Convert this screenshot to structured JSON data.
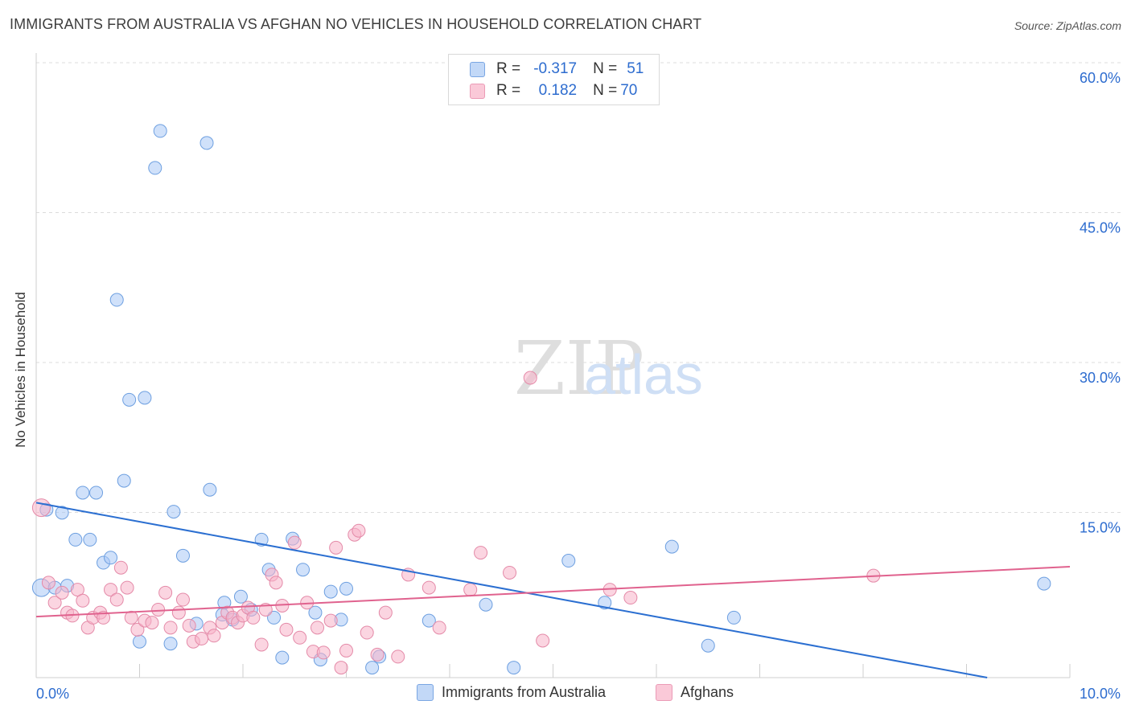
{
  "title": "IMMIGRANTS FROM AUSTRALIA VS AFGHAN NO VEHICLES IN HOUSEHOLD CORRELATION CHART",
  "source": "Source: ZipAtlas.com",
  "watermark": {
    "zip": "ZIP",
    "atlas": "atlas"
  },
  "legend": {
    "rows": [
      {
        "r_label": "R =",
        "r_value": "-0.317",
        "n_label": "N =",
        "n_value": "51",
        "color": "#a9c8f5"
      },
      {
        "r_label": "R =",
        "r_value": "0.182",
        "n_label": "N =",
        "n_value": "70",
        "color": "#f7b3c8"
      }
    ]
  },
  "bottom_legend": {
    "items": [
      {
        "label": "Immigrants from Australia",
        "color": "#a9c8f5"
      },
      {
        "label": "Afghans",
        "color": "#f7b3c8"
      }
    ]
  },
  "chart_data": {
    "type": "scatter",
    "title": "IMMIGRANTS FROM AUSTRALIA VS AFGHAN NO VEHICLES IN HOUSEHOLD CORRELATION CHART",
    "xlabel": "",
    "ylabel": "No Vehicles in Household",
    "xlim": [
      0,
      10
    ],
    "ylim": [
      0,
      60
    ],
    "x_tick_labels": [
      "0.0%",
      "10.0%"
    ],
    "y_ticks": [
      15,
      30,
      45,
      60
    ],
    "y_tick_labels": [
      "15.0%",
      "30.0%",
      "45.0%",
      "60.0%"
    ],
    "grid": "horizontal dashed",
    "legend_placement": "top-center",
    "series": [
      {
        "name": "Immigrants from Australia",
        "color": "#a9c8f5",
        "stroke": "#6d9fe0",
        "line_color": "#2b6fd1",
        "trend": {
          "x0": 0.0,
          "y0": 17.5,
          "x1": 9.2,
          "y1": 0.0
        },
        "points": [
          [
            0.05,
            9.0
          ],
          [
            0.1,
            16.8
          ],
          [
            0.18,
            9.0
          ],
          [
            0.25,
            16.5
          ],
          [
            0.3,
            9.2
          ],
          [
            0.38,
            13.8
          ],
          [
            0.45,
            18.5
          ],
          [
            0.52,
            13.8
          ],
          [
            0.58,
            18.5
          ],
          [
            0.65,
            11.5
          ],
          [
            0.72,
            12.0
          ],
          [
            0.78,
            37.8
          ],
          [
            0.85,
            19.7
          ],
          [
            0.9,
            27.8
          ],
          [
            1.0,
            3.6
          ],
          [
            1.05,
            28.0
          ],
          [
            1.15,
            51.0
          ],
          [
            1.2,
            54.7
          ],
          [
            1.3,
            3.4
          ],
          [
            1.33,
            16.6
          ],
          [
            1.42,
            12.2
          ],
          [
            1.55,
            5.4
          ],
          [
            1.65,
            53.5
          ],
          [
            1.68,
            18.8
          ],
          [
            1.8,
            6.3
          ],
          [
            1.82,
            7.5
          ],
          [
            1.9,
            5.8
          ],
          [
            1.98,
            8.1
          ],
          [
            2.08,
            6.8
          ],
          [
            2.18,
            13.8
          ],
          [
            2.25,
            10.8
          ],
          [
            2.3,
            6.0
          ],
          [
            2.38,
            2.0
          ],
          [
            2.48,
            13.9
          ],
          [
            2.58,
            10.8
          ],
          [
            2.7,
            6.5
          ],
          [
            2.75,
            1.8
          ],
          [
            2.85,
            8.6
          ],
          [
            2.95,
            5.8
          ],
          [
            3.0,
            8.9
          ],
          [
            3.25,
            1.0
          ],
          [
            3.32,
            2.1
          ],
          [
            3.8,
            5.7
          ],
          [
            4.35,
            7.3
          ],
          [
            4.62,
            1.0
          ],
          [
            5.15,
            11.7
          ],
          [
            5.5,
            7.5
          ],
          [
            6.15,
            13.1
          ],
          [
            6.5,
            3.2
          ],
          [
            6.75,
            6.0
          ],
          [
            9.75,
            9.4
          ]
        ]
      },
      {
        "name": "Afghans",
        "color": "#f7b3c8",
        "stroke": "#e48aa8",
        "line_color": "#e0628e",
        "trend": {
          "x0": 0.0,
          "y0": 6.1,
          "x1": 10.0,
          "y1": 11.1
        },
        "points": [
          [
            0.05,
            17.0
          ],
          [
            0.12,
            9.5
          ],
          [
            0.18,
            7.5
          ],
          [
            0.25,
            8.5
          ],
          [
            0.3,
            6.5
          ],
          [
            0.35,
            6.2
          ],
          [
            0.4,
            8.8
          ],
          [
            0.45,
            7.7
          ],
          [
            0.5,
            5.0
          ],
          [
            0.55,
            6.0
          ],
          [
            0.62,
            6.5
          ],
          [
            0.65,
            6.0
          ],
          [
            0.72,
            8.8
          ],
          [
            0.78,
            7.8
          ],
          [
            0.82,
            11.0
          ],
          [
            0.88,
            9.0
          ],
          [
            0.92,
            6.0
          ],
          [
            0.98,
            4.8
          ],
          [
            1.05,
            5.7
          ],
          [
            1.12,
            5.5
          ],
          [
            1.18,
            6.8
          ],
          [
            1.25,
            8.5
          ],
          [
            1.3,
            5.0
          ],
          [
            1.38,
            6.5
          ],
          [
            1.42,
            7.8
          ],
          [
            1.48,
            5.2
          ],
          [
            1.52,
            3.6
          ],
          [
            1.6,
            3.9
          ],
          [
            1.68,
            5.0
          ],
          [
            1.72,
            4.2
          ],
          [
            1.8,
            5.5
          ],
          [
            1.85,
            6.5
          ],
          [
            1.9,
            6.0
          ],
          [
            1.95,
            5.5
          ],
          [
            2.0,
            6.2
          ],
          [
            2.05,
            7.0
          ],
          [
            2.1,
            6.0
          ],
          [
            2.18,
            3.3
          ],
          [
            2.22,
            6.8
          ],
          [
            2.28,
            10.3
          ],
          [
            2.32,
            9.5
          ],
          [
            2.38,
            7.2
          ],
          [
            2.42,
            4.8
          ],
          [
            2.5,
            13.5
          ],
          [
            2.55,
            4.0
          ],
          [
            2.62,
            7.5
          ],
          [
            2.68,
            2.6
          ],
          [
            2.72,
            5.0
          ],
          [
            2.78,
            2.5
          ],
          [
            2.85,
            5.7
          ],
          [
            2.9,
            13.0
          ],
          [
            2.95,
            1.0
          ],
          [
            3.0,
            2.7
          ],
          [
            3.08,
            14.3
          ],
          [
            3.12,
            14.7
          ],
          [
            3.2,
            4.5
          ],
          [
            3.3,
            2.3
          ],
          [
            3.38,
            6.5
          ],
          [
            3.5,
            2.1
          ],
          [
            3.6,
            10.3
          ],
          [
            3.8,
            9.0
          ],
          [
            3.9,
            5.0
          ],
          [
            4.2,
            8.8
          ],
          [
            4.3,
            12.5
          ],
          [
            4.58,
            10.5
          ],
          [
            4.9,
            3.7
          ],
          [
            4.78,
            30.0
          ],
          [
            5.55,
            8.8
          ],
          [
            5.75,
            8.0
          ],
          [
            8.1,
            10.2
          ]
        ]
      }
    ]
  }
}
